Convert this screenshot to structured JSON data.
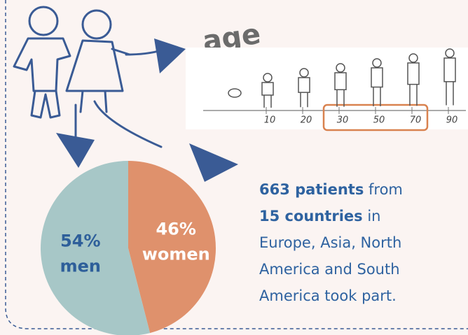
{
  "chart_data": {
    "type": "pie",
    "categories": [
      "men",
      "women"
    ],
    "values": [
      54,
      46
    ],
    "value_labels": [
      "54%",
      "46%"
    ],
    "colors": [
      "#a7c7c7",
      "#df916c"
    ]
  },
  "age_scale": {
    "label": "age",
    "ticks": [
      10,
      20,
      30,
      50,
      70,
      90
    ]
  },
  "note": {
    "lines": [
      [
        {
          "text": "663 patients",
          "bold": true
        },
        {
          "text": " from",
          "bold": false
        }
      ],
      [
        {
          "text": "15 countries",
          "bold": true
        },
        {
          "text": " in",
          "bold": false
        }
      ],
      [
        {
          "text": "Europe, Asia, North",
          "bold": false
        }
      ],
      [
        {
          "text": "America and South",
          "bold": false
        }
      ],
      [
        {
          "text": "America took part.",
          "bold": false
        }
      ]
    ]
  }
}
